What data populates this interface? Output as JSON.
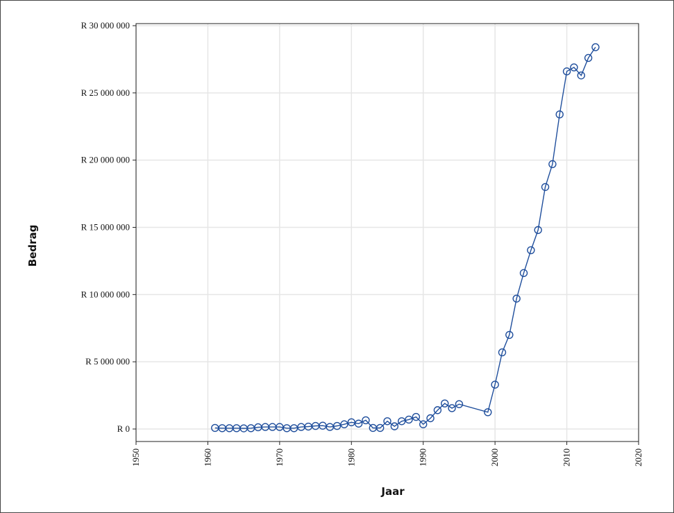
{
  "chart_data": {
    "type": "line",
    "xlabel": "Jaar",
    "ylabel": "Bedrag",
    "xlim": [
      1950,
      2020
    ],
    "ylim": [
      0,
      30000000
    ],
    "x_ticks": [
      "1950",
      "1960",
      "1970",
      "1980",
      "1990",
      "2000",
      "2010",
      "2020"
    ],
    "y_ticks": [
      "R 0",
      "R 5 000 000",
      "R 10 000 000",
      "R 15 000 000",
      "R 20 000 000",
      "R 25 000 000",
      "R 30 000 000"
    ],
    "grid": true,
    "line_color": "#1f4e9c",
    "series": [
      {
        "x": [
          1961,
          1962,
          1963,
          1964,
          1965,
          1966,
          1967,
          1968,
          1969,
          1970,
          1971,
          1972,
          1973,
          1974,
          1975,
          1976,
          1977,
          1978,
          1979,
          1980,
          1981,
          1982,
          1983,
          1984,
          1985,
          1986,
          1987,
          1988,
          1989,
          1990,
          1991,
          1992,
          1993,
          1994,
          1995,
          1999,
          2000,
          2001,
          2002,
          2003,
          2004,
          2005,
          2006,
          2007,
          2008,
          2009,
          2010,
          2011,
          2012,
          2013,
          2014
        ],
        "y": [
          80000,
          60000,
          60000,
          60000,
          50000,
          60000,
          130000,
          150000,
          150000,
          150000,
          60000,
          60000,
          150000,
          180000,
          230000,
          250000,
          150000,
          230000,
          350000,
          500000,
          400000,
          650000,
          80000,
          80000,
          580000,
          200000,
          580000,
          700000,
          900000,
          350000,
          800000,
          1400000,
          1900000,
          1550000,
          1850000,
          1250000,
          3300000,
          5700000,
          7000000,
          9700000,
          11600000,
          13300000,
          14800000,
          18000000,
          19700000,
          23400000,
          26600000,
          26900000,
          26300000,
          27600000,
          28400000
        ]
      }
    ]
  }
}
